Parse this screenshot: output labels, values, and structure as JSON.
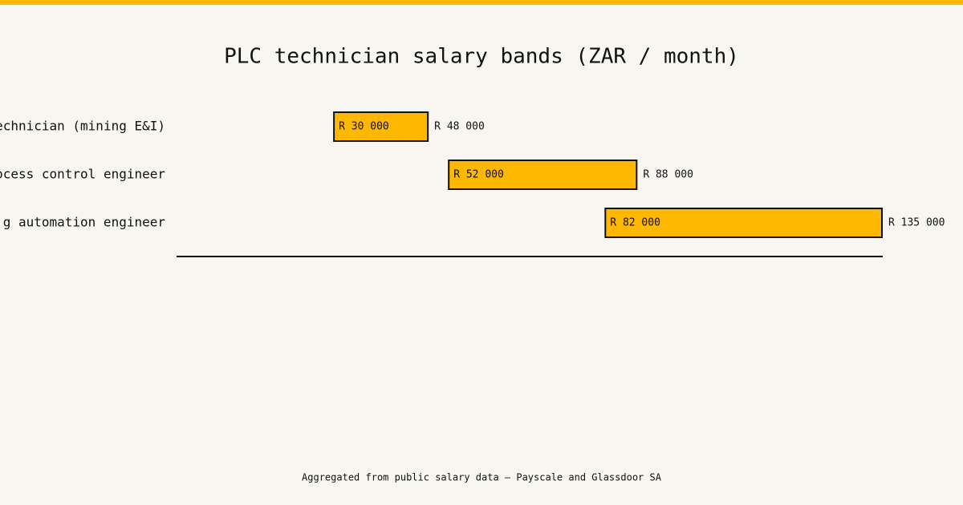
{
  "chart_data": {
    "type": "range",
    "title": "PLC technician salary bands (ZAR / month)",
    "categories": [
      "echnician (mining E&I)",
      "ocess control engineer",
      "g automation engineer"
    ],
    "series": [
      {
        "values": [
          30000,
          52000,
          82000
        ],
        "value_labels": [
          "R 30 000",
          "R 52 000",
          "R 82 000"
        ]
      },
      {
        "values": [
          48000,
          88000,
          135000
        ],
        "value_labels": [
          "R 48 000",
          "R 88 000",
          "R 135 000"
        ]
      }
    ],
    "color": "#ffb800",
    "xlim": [
      0,
      135000
    ],
    "source": "Aggregated from public salary data — Payscale and Glassdoor SA"
  }
}
